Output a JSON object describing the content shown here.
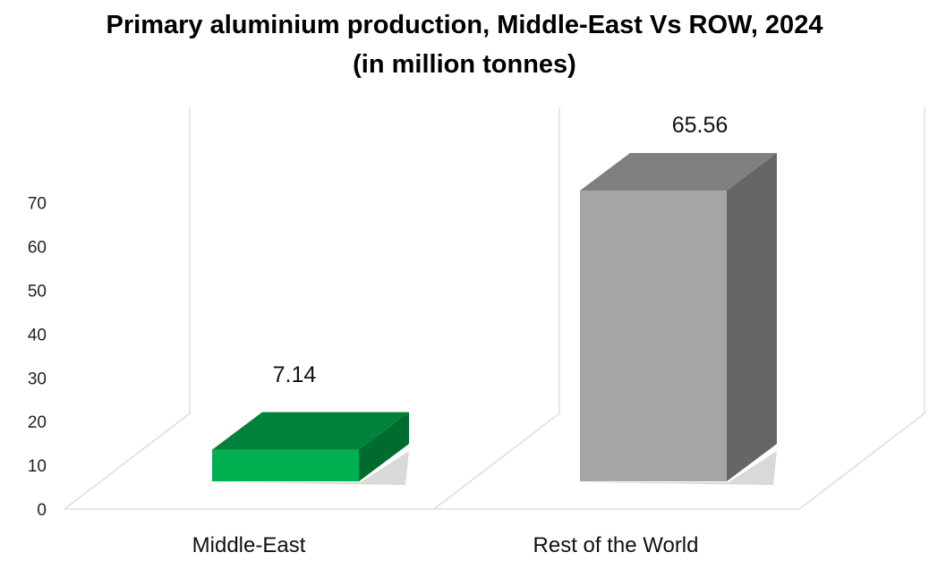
{
  "chart_data": {
    "type": "bar",
    "title": "Primary aluminium production, Middle-East Vs ROW, 2024",
    "subtitle": "(in million tonnes)",
    "categories": [
      "Middle-East",
      "Rest of the World"
    ],
    "values": [
      7.14,
      65.56
    ],
    "data_labels": [
      "7.14",
      "65.56"
    ],
    "yticks": [
      "0",
      "10",
      "20",
      "30",
      "40",
      "50",
      "60",
      "70"
    ],
    "ylim": [
      0,
      70
    ],
    "grid": false,
    "three_d": true,
    "colors": {
      "Middle-East": {
        "front": "#00b050",
        "top": "#00823a",
        "side": "#006b2e"
      },
      "Rest of the World": {
        "front": "#a6a6a6",
        "top": "#7f7f7f",
        "side": "#666666"
      }
    }
  }
}
